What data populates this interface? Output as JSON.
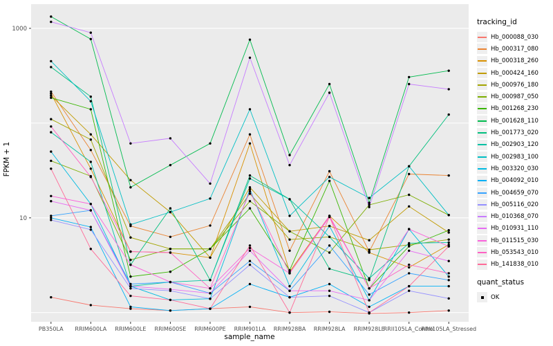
{
  "figure": {
    "bg": "#FFFFFF",
    "panel_bg": "#EBEBEB",
    "grid_color": "#FFFFFF",
    "tick_label_color": "#4D4D4D",
    "tick_mark_color": "#333333",
    "point_color": "#000000"
  },
  "chart_data": {
    "type": "line",
    "title": "",
    "xlabel": "sample_name",
    "ylabel": "FPKM + 1",
    "y_scale": "log10",
    "ylim": [
      0.8,
      1800
    ],
    "gridlines": [
      1,
      10,
      100,
      1000
    ],
    "y_ticks": [
      {
        "value": 10,
        "label": "10"
      },
      {
        "value": 1000,
        "label": "1000"
      }
    ],
    "x_categories": [
      "PB350LA",
      "RRIM600LA",
      "RRIM600LE",
      "RRIM600SE",
      "RRIM600PE",
      "RRIM901LA",
      "RRIM928BA",
      "RRIM928LA",
      "RRIM928LE",
      "RRII105LA_Control",
      "RRII105LA_Stressed"
    ],
    "legend": {
      "tracking_title": "tracking_id",
      "quant_title": "quant_status",
      "quant_items": [
        {
          "label": "OK"
        }
      ]
    },
    "series": [
      {
        "name": "Hb_000088_030",
        "color": "#F8766D",
        "values": [
          1.45,
          1.2,
          1.1,
          1.05,
          1.1,
          1.15,
          1.0,
          1.02,
          0.98,
          1.0,
          1.05
        ]
      },
      {
        "name": "Hb_000317_080",
        "color": "#EA8331",
        "values": [
          215,
          52,
          8.2,
          6.3,
          8.3,
          76,
          4.5,
          31,
          4.4,
          29,
          28
        ]
      },
      {
        "name": "Hb_000318_260",
        "color": "#D89000",
        "values": [
          205,
          33,
          4.4,
          4.3,
          3.8,
          61,
          2.7,
          10.5,
          4.3,
          3.0,
          5.2
        ]
      },
      {
        "name": "Hb_000424_160",
        "color": "#C09B00",
        "values": [
          195,
          76,
          25,
          11.5,
          3.8,
          21,
          7.2,
          8.2,
          5.8,
          13.2,
          7.0
        ]
      },
      {
        "name": "Hb_000976_180",
        "color": "#A3A500",
        "values": [
          110,
          67,
          6.2,
          4.7,
          4.7,
          18,
          5.9,
          6.3,
          4.6,
          5.2,
          5.9
        ]
      },
      {
        "name": "Hb_000987_050",
        "color": "#7CAE00",
        "values": [
          40,
          27.5,
          3.6,
          4.7,
          4.7,
          15,
          7.2,
          4.3,
          13.7,
          17.5,
          10.7
        ]
      },
      {
        "name": "Hb_001268_230",
        "color": "#39B600",
        "values": [
          185,
          140,
          2.4,
          2.7,
          4.7,
          12.6,
          2.8,
          24.5,
          1.8,
          5.0,
          7.4
        ]
      },
      {
        "name": "Hb_001628_110",
        "color": "#00BB4E",
        "values": [
          1330,
          770,
          21,
          36,
          61,
          760,
          46,
          258,
          14.4,
          306,
          357
        ]
      },
      {
        "name": "Hb_001773_020",
        "color": "#00BF7D",
        "values": [
          390,
          190,
          3.2,
          12.6,
          2.2,
          28,
          15.7,
          2.9,
          2.2,
          35,
          123
        ]
      },
      {
        "name": "Hb_002903_120",
        "color": "#00C1A3",
        "values": [
          80,
          39,
          1.9,
          2.1,
          2.2,
          26,
          15.7,
          6.3,
          2.3,
          5.4,
          5.5
        ]
      },
      {
        "name": "Hb_002983_100",
        "color": "#00BFC4",
        "values": [
          450,
          170,
          8.5,
          11.5,
          16,
          140,
          10.5,
          27,
          16.2,
          35,
          10.7
        ]
      },
      {
        "name": "Hb_003320_030",
        "color": "#00BAE0",
        "values": [
          50,
          14,
          1.9,
          1.36,
          1.4,
          20,
          1.9,
          8.2,
          1.35,
          7.6,
          2.4
        ]
      },
      {
        "name": "Hb_004092_010",
        "color": "#00B0F6",
        "values": [
          10,
          8,
          1.15,
          1.05,
          1.1,
          2.0,
          1.45,
          2.0,
          1.15,
          1.9,
          1.9
        ]
      },
      {
        "name": "Hb_004659_070",
        "color": "#35A2FF",
        "values": [
          10.5,
          12,
          2.0,
          2.1,
          1.6,
          3.5,
          1.7,
          5.1,
          1.55,
          2.6,
          2.2
        ]
      },
      {
        "name": "Hb_005116_020",
        "color": "#9590FF",
        "values": [
          9.5,
          7.5,
          1.8,
          1.7,
          1.4,
          3.2,
          1.45,
          1.5,
          1.0,
          1.7,
          1.41
        ]
      },
      {
        "name": "Hb_010368_070",
        "color": "#C77CFF",
        "values": [
          1170,
          900,
          61,
          69,
          23,
          490,
          36,
          209,
          13,
          258,
          228
        ]
      },
      {
        "name": "Hb_010931_110",
        "color": "#E76BF3",
        "values": [
          15,
          12,
          1.9,
          1.76,
          1.6,
          4.5,
          1.7,
          1.7,
          1.35,
          4.5,
          3.5
        ]
      },
      {
        "name": "Hb_011515_030",
        "color": "#FA62DB",
        "values": [
          17,
          14,
          3.2,
          2.1,
          1.8,
          4.8,
          2.6,
          10.2,
          1.8,
          7.6,
          5.0
        ]
      },
      {
        "name": "Hb_053543_010",
        "color": "#FF61C3",
        "values": [
          92,
          27,
          4.4,
          4.3,
          1.8,
          19,
          2.6,
          10.5,
          1.8,
          3.2,
          2.6
        ]
      },
      {
        "name": "Hb_141838_010",
        "color": "#FF6A98",
        "values": [
          33,
          4.7,
          1.5,
          1.36,
          1.1,
          5.1,
          1.0,
          10.3,
          1.0,
          1.9,
          5.0
        ]
      }
    ]
  }
}
